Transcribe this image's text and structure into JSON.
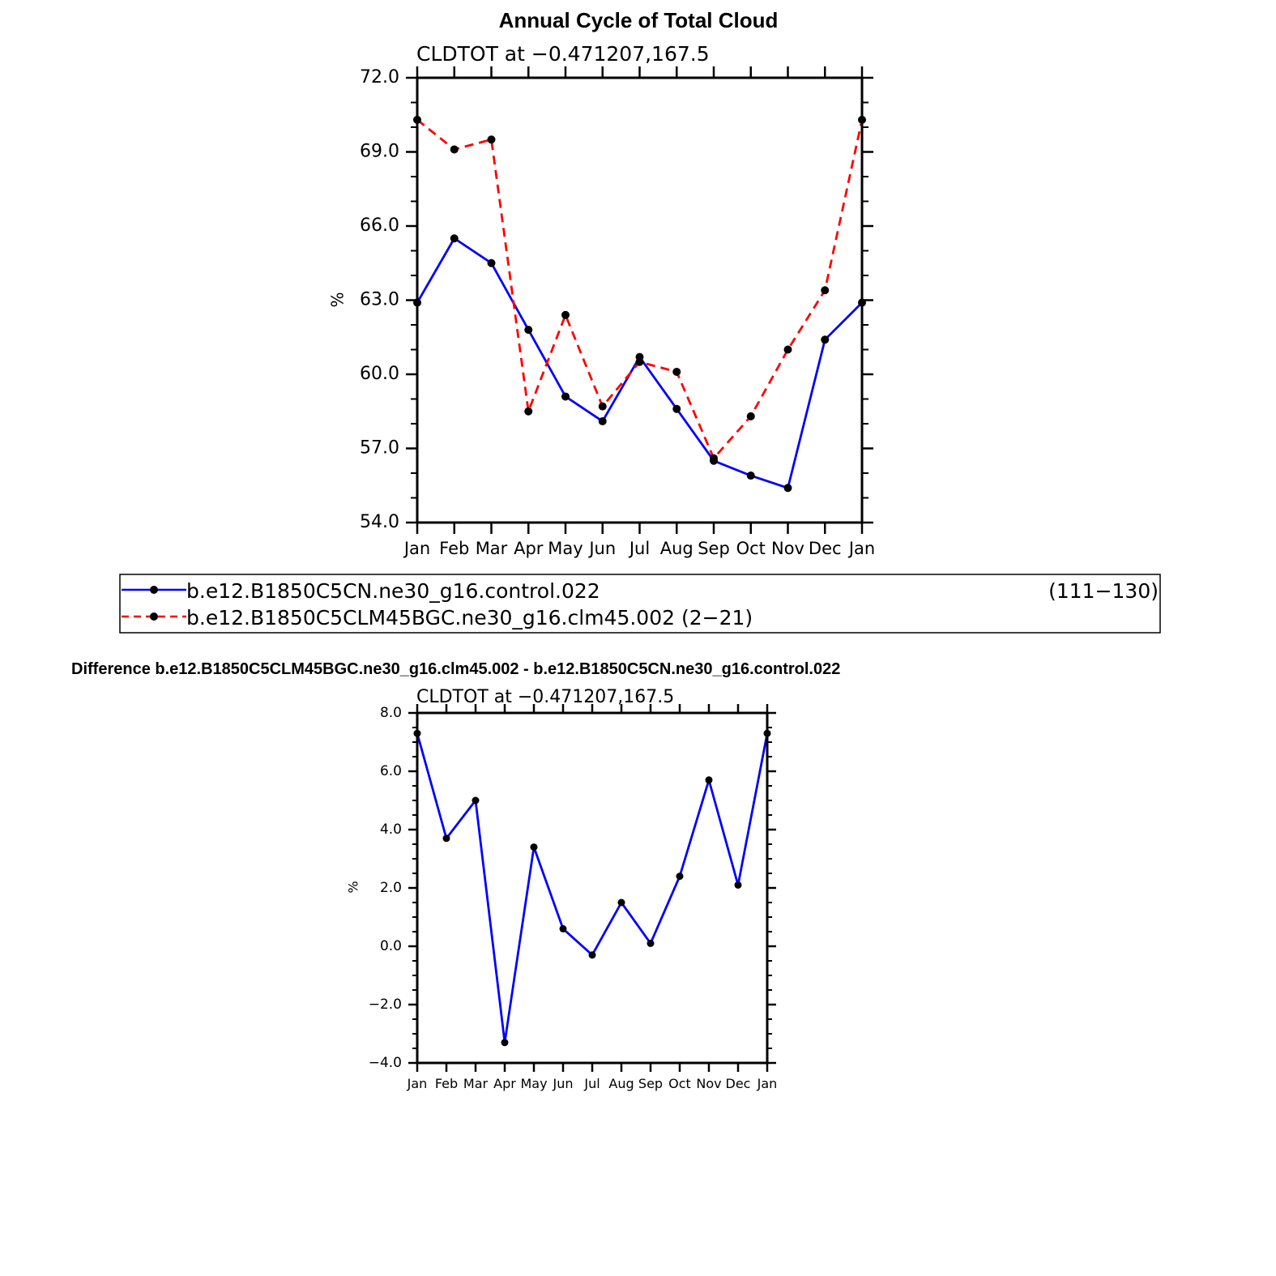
{
  "chart_data": [
    {
      "type": "line",
      "title": "Annual Cycle of Total Cloud",
      "subtitle": "CLDTOT at −0.471207,167.5",
      "xlabel": "",
      "ylabel": "%",
      "categories": [
        "Jan",
        "Feb",
        "Mar",
        "Apr",
        "May",
        "Jun",
        "Jul",
        "Aug",
        "Sep",
        "Oct",
        "Nov",
        "Dec",
        "Jan"
      ],
      "ylim": [
        54.0,
        72.0
      ],
      "yticks": [
        "54.0",
        "57.0",
        "60.0",
        "63.0",
        "66.0",
        "69.0",
        "72.0"
      ],
      "series": [
        {
          "name": "b.e12.B1850C5CN.ne30_g16.control.022",
          "years": "(111−130)",
          "color": "#0000ff",
          "dash": "solid",
          "values": [
            62.9,
            65.5,
            64.5,
            61.8,
            59.1,
            58.1,
            60.7,
            58.6,
            56.5,
            55.9,
            55.4,
            61.4,
            62.9
          ]
        },
        {
          "name": "b.e12.B1850C5CLM45BGC.ne30_g16.clm45.002",
          "years": "(2−21)",
          "color": "#ff0000",
          "dash": "dashed",
          "values": [
            70.3,
            69.1,
            69.5,
            58.5,
            62.4,
            58.7,
            60.5,
            60.1,
            56.6,
            58.3,
            61.0,
            63.4,
            70.3
          ]
        }
      ],
      "marker_color": "#000000",
      "grid": false
    },
    {
      "type": "line",
      "title": "Difference b.e12.B1850C5CLM45BGC.ne30_g16.clm45.002 - b.e12.B1850C5CN.ne30_g16.control.022",
      "subtitle": "CLDTOT at −0.471207,167.5",
      "xlabel": "",
      "ylabel": "%",
      "categories": [
        "Jan",
        "Feb",
        "Mar",
        "Apr",
        "May",
        "Jun",
        "Jul",
        "Aug",
        "Sep",
        "Oct",
        "Nov",
        "Dec",
        "Jan"
      ],
      "ylim": [
        -4.0,
        8.0
      ],
      "yticks": [
        "−4.0",
        "−2.0",
        "0.0",
        "2.0",
        "4.0",
        "6.0",
        "8.0"
      ],
      "series": [
        {
          "name": "difference",
          "color": "#0000ff",
          "dash": "solid",
          "values": [
            7.3,
            3.7,
            5.0,
            -3.3,
            3.4,
            0.6,
            -0.3,
            1.5,
            0.1,
            2.4,
            5.7,
            2.1,
            7.3
          ]
        }
      ],
      "marker_color": "#000000",
      "grid": false
    }
  ]
}
